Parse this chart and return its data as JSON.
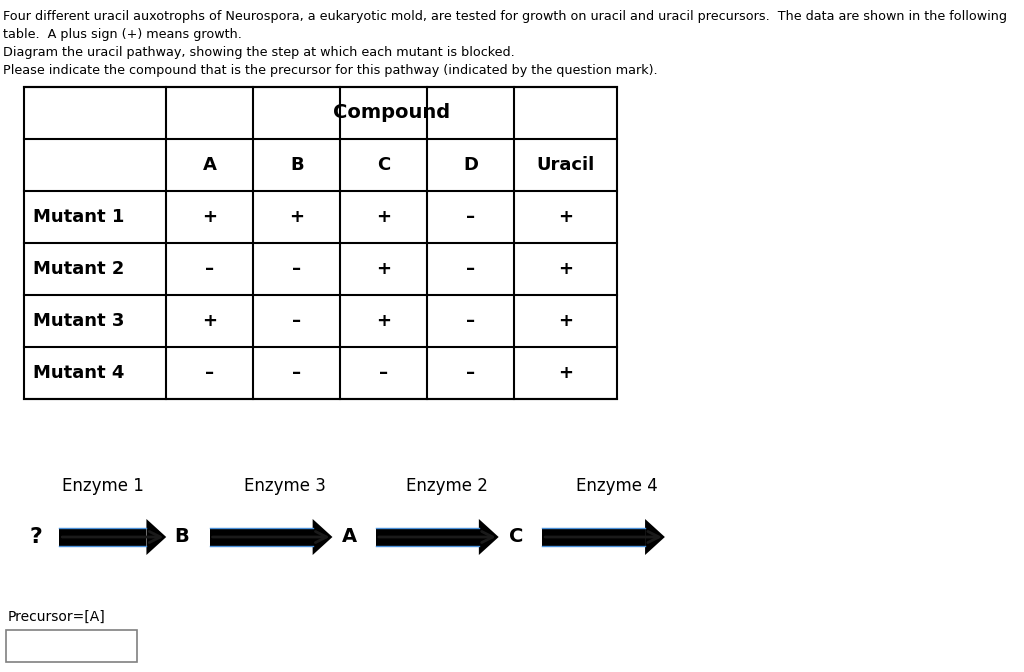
{
  "title_text": "Four different uracil auxotrophs of Neurospora, a eukaryotic mold, are tested for growth on uracil and uracil precursors.  The data are shown in the following\ntable.  A plus sign (+) means growth.\nDiagram the uracil pathway, showing the step at which each mutant is blocked.\nPlease indicate the compound that is the precursor for this pathway (indicated by the question mark).",
  "table": {
    "col_headers": [
      "",
      "Compound",
      "",
      "",
      "",
      ""
    ],
    "col_subheaders": [
      "",
      "A",
      "B",
      "C",
      "D",
      "Uracil"
    ],
    "rows": [
      [
        "Mutant 1",
        "+",
        "+",
        "+",
        "–",
        "+"
      ],
      [
        "Mutant 2",
        "–",
        "–",
        "+",
        "–",
        "+"
      ],
      [
        "Mutant 3",
        "+",
        "–",
        "+",
        "–",
        "+"
      ],
      [
        "Mutant 4",
        "–",
        "–",
        "–",
        "–",
        "+"
      ]
    ]
  },
  "pathway": {
    "nodes": [
      "?",
      "B",
      "A",
      "C",
      ""
    ],
    "enzymes": [
      "Enzyme 1",
      "Enzyme 3",
      "Enzyme 2",
      "Enzyme 4"
    ]
  },
  "precursor_label": "Precursor=[A]",
  "bg_color": "#ffffff",
  "text_color": "#000000",
  "arrow_color": "#1a1a1a",
  "arrow_outline": "#4a90d9"
}
